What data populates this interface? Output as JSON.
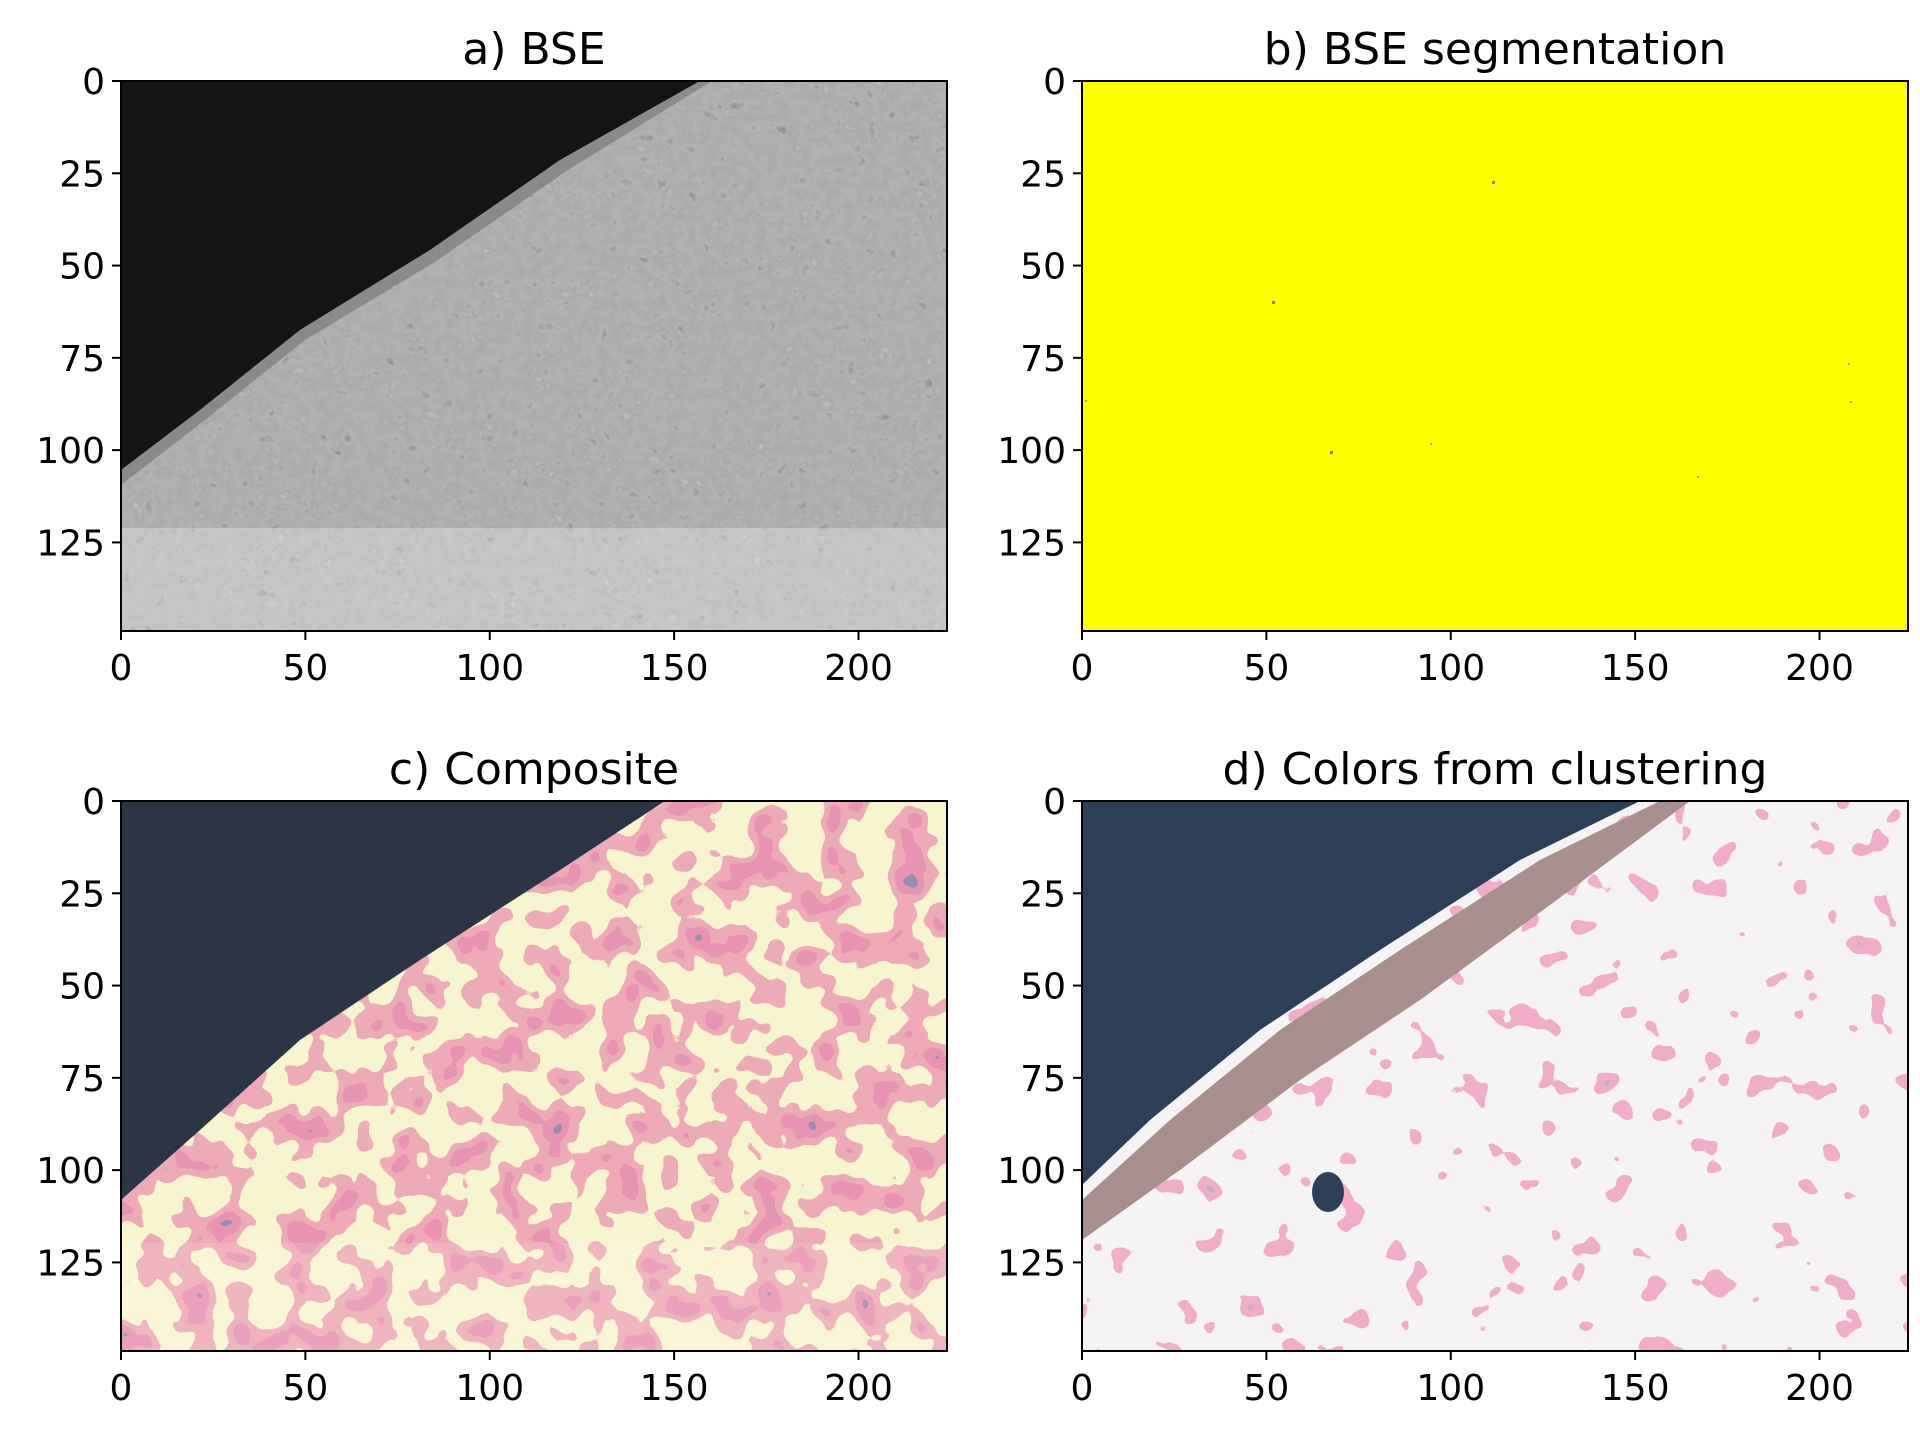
{
  "chart_data": [
    {
      "type": "heatmap",
      "title": "a) BSE",
      "image_kind": "grayscale electron micrograph",
      "x_ticks": [
        0,
        50,
        100,
        150,
        200
      ],
      "y_ticks": [
        0,
        25,
        50,
        75,
        100,
        125
      ],
      "xlim": [
        0,
        224
      ],
      "ylim": [
        149,
        0
      ]
    },
    {
      "type": "heatmap",
      "title": "b) BSE segmentation",
      "image_kind": "binary segmentation mask (nearly all one class)",
      "x_ticks": [
        0,
        50,
        100,
        150,
        200
      ],
      "y_ticks": [
        0,
        25,
        50,
        75,
        100,
        125
      ],
      "xlim": [
        0,
        224
      ],
      "ylim": [
        149,
        0
      ]
    },
    {
      "type": "heatmap",
      "title": "c) Composite",
      "image_kind": "false-color composite",
      "x_ticks": [
        0,
        50,
        100,
        150,
        200
      ],
      "y_ticks": [
        0,
        25,
        50,
        75,
        100,
        125
      ],
      "xlim": [
        0,
        224
      ],
      "ylim": [
        149,
        0
      ]
    },
    {
      "type": "heatmap",
      "title": "d) Colors from clustering",
      "image_kind": "cluster label map",
      "x_ticks": [
        0,
        50,
        100,
        150,
        200
      ],
      "y_ticks": [
        0,
        25,
        50,
        75,
        100,
        125
      ],
      "xlim": [
        0,
        224
      ],
      "ylim": [
        149,
        0
      ]
    }
  ],
  "colors": {
    "bse_dark": "#151515",
    "bse_mid": "#6b6b6b",
    "bse_light": "#b4b4b4",
    "segmentation_yellow": "#ffff00",
    "composite_dark": "#2c3545",
    "composite_yellow": "#ece9a2",
    "composite_red": "#dc5a6e",
    "composite_blue": "#5b4f7a",
    "cluster_navy": "#2d3e59",
    "cluster_pink": "#e06a92",
    "cluster_white": "#e8e6e6",
    "cluster_purple": "#8f6a9c",
    "cluster_taupe": "#a88e8c"
  }
}
